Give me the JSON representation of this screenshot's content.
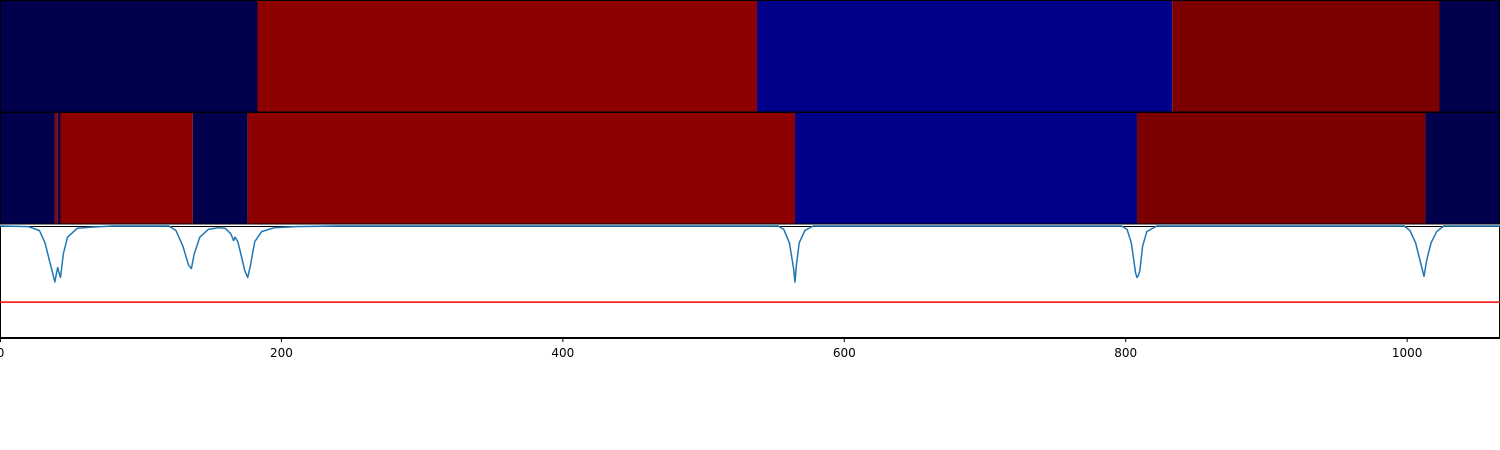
{
  "chart_data": {
    "type": "segmentation-plot",
    "x_range": [
      0,
      1066
    ],
    "x_ticks": [
      {
        "value": 0,
        "label": "0"
      },
      {
        "value": 200,
        "label": "200"
      },
      {
        "value": 400,
        "label": "400"
      },
      {
        "value": 600,
        "label": "600"
      },
      {
        "value": 800,
        "label": "800"
      },
      {
        "value": 1000,
        "label": "1000"
      }
    ],
    "tracks": [
      {
        "name": "",
        "segments": [
          {
            "start": 0,
            "end": 183,
            "color": "#00004c"
          },
          {
            "start": 183,
            "end": 538,
            "color": "#8f0000"
          },
          {
            "start": 538,
            "end": 833,
            "color": "#00008b"
          },
          {
            "start": 833,
            "end": 1023,
            "color": "#7c0000"
          },
          {
            "start": 1023,
            "end": 1066,
            "color": "#00004c"
          }
        ]
      },
      {
        "name": "",
        "segments": [
          {
            "start": 0,
            "end": 39,
            "color": "#00004c"
          },
          {
            "start": 39,
            "end": 41,
            "color": "#8f0000"
          },
          {
            "start": 41,
            "end": 43,
            "color": "#00004c"
          },
          {
            "start": 43,
            "end": 137,
            "color": "#8f0000"
          },
          {
            "start": 137,
            "end": 176,
            "color": "#00004c"
          },
          {
            "start": 176,
            "end": 565,
            "color": "#8f0000"
          },
          {
            "start": 565,
            "end": 808,
            "color": "#00008b"
          },
          {
            "start": 808,
            "end": 1013,
            "color": "#7c0000"
          },
          {
            "start": 1013,
            "end": 1066,
            "color": "#00004c"
          }
        ]
      }
    ],
    "line_panel": {
      "y_range": [
        0,
        1
      ],
      "series": [
        {
          "color": "#1f77b4",
          "baseline": 1.0,
          "points": [
            [
              0,
              1.0
            ],
            [
              20,
              0.995
            ],
            [
              28,
              0.96
            ],
            [
              32,
              0.85
            ],
            [
              35,
              0.7
            ],
            [
              38,
              0.55
            ],
            [
              39,
              0.5
            ],
            [
              40,
              0.57
            ],
            [
              41,
              0.63
            ],
            [
              42,
              0.58
            ],
            [
              43,
              0.54
            ],
            [
              45,
              0.75
            ],
            [
              48,
              0.9
            ],
            [
              55,
              0.98
            ],
            [
              65,
              0.99
            ],
            [
              72,
              0.995
            ],
            [
              80,
              1.0
            ],
            [
              120,
              1.0
            ],
            [
              125,
              0.96
            ],
            [
              130,
              0.82
            ],
            [
              134,
              0.65
            ],
            [
              136,
              0.62
            ],
            [
              138,
              0.75
            ],
            [
              142,
              0.9
            ],
            [
              148,
              0.97
            ],
            [
              155,
              0.985
            ],
            [
              160,
              0.98
            ],
            [
              164,
              0.93
            ],
            [
              166,
              0.87
            ],
            [
              167,
              0.9
            ],
            [
              169,
              0.86
            ],
            [
              171,
              0.76
            ],
            [
              174,
              0.6
            ],
            [
              176,
              0.54
            ],
            [
              178,
              0.65
            ],
            [
              181,
              0.86
            ],
            [
              186,
              0.95
            ],
            [
              195,
              0.985
            ],
            [
              210,
              0.995
            ],
            [
              240,
              1.0
            ],
            [
              553,
              1.0
            ],
            [
              557,
              0.97
            ],
            [
              561,
              0.85
            ],
            [
              564,
              0.62
            ],
            [
              565,
              0.5
            ],
            [
              566,
              0.65
            ],
            [
              568,
              0.85
            ],
            [
              572,
              0.96
            ],
            [
              578,
              1.0
            ],
            [
              797,
              1.0
            ],
            [
              801,
              0.97
            ],
            [
              804,
              0.85
            ],
            [
              807,
              0.58
            ],
            [
              808,
              0.54
            ],
            [
              809,
              0.56
            ],
            [
              810,
              0.6
            ],
            [
              812,
              0.82
            ],
            [
              815,
              0.95
            ],
            [
              822,
              1.0
            ],
            [
              998,
              1.0
            ],
            [
              1002,
              0.96
            ],
            [
              1006,
              0.85
            ],
            [
              1010,
              0.65
            ],
            [
              1012,
              0.55
            ],
            [
              1014,
              0.7
            ],
            [
              1017,
              0.85
            ],
            [
              1021,
              0.95
            ],
            [
              1026,
              1.0
            ],
            [
              1066,
              1.0
            ]
          ]
        }
      ],
      "threshold": {
        "value": 0.32,
        "color": "#ff0000"
      }
    }
  }
}
